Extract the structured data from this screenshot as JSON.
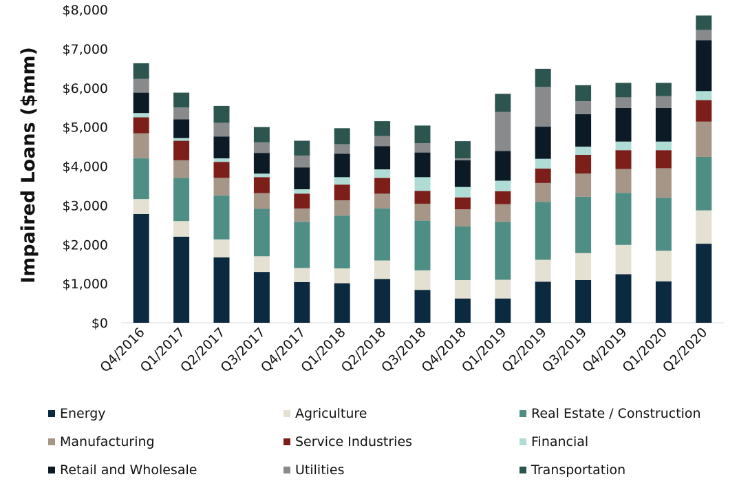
{
  "chart_data": {
    "type": "bar",
    "stacked": true,
    "ylabel": "Impaired Loans ($mm)",
    "xlabel": "",
    "ylim": [
      0,
      8000
    ],
    "yticks": [
      "$0",
      "$1,000",
      "$2,000",
      "$3,000",
      "$4,000",
      "$5,000",
      "$6,000",
      "$7,000",
      "$8,000"
    ],
    "ytick_values": [
      0,
      1000,
      2000,
      3000,
      4000,
      5000,
      6000,
      7000,
      8000
    ],
    "grid": false,
    "legend_position": "bottom",
    "categories": [
      "Q4/2016",
      "Q1/2017",
      "Q2/2017",
      "Q3/2017",
      "Q4/2017",
      "Q1/2018",
      "Q2/2018",
      "Q3/2018",
      "Q4/2018",
      "Q1/2019",
      "Q2/2019",
      "Q3/2019",
      "Q4/2019",
      "Q1/2020",
      "Q2/2020"
    ],
    "series": [
      {
        "name": "Energy",
        "color": "#0c2a3f",
        "values": [
          2780,
          2200,
          1670,
          1300,
          1040,
          1010,
          1120,
          840,
          620,
          620,
          1050,
          1090,
          1240,
          1060,
          2020
        ]
      },
      {
        "name": "Agriculture",
        "color": "#e4e1d3",
        "values": [
          380,
          400,
          460,
          400,
          360,
          380,
          470,
          500,
          470,
          480,
          560,
          690,
          750,
          780,
          850
        ]
      },
      {
        "name": "Real Estate / Construction",
        "color": "#4f8e85",
        "values": [
          1040,
          1100,
          1120,
          1210,
          1180,
          1350,
          1330,
          1270,
          1370,
          1480,
          1480,
          1440,
          1330,
          1350,
          1370
        ]
      },
      {
        "name": "Manufacturing",
        "color": "#a69688",
        "values": [
          640,
          450,
          450,
          400,
          340,
          390,
          380,
          430,
          440,
          450,
          480,
          590,
          610,
          760,
          900
        ]
      },
      {
        "name": "Service Industries",
        "color": "#7c1f1a",
        "values": [
          410,
          500,
          410,
          410,
          380,
          400,
          400,
          330,
          300,
          330,
          370,
          480,
          480,
          460,
          550
        ]
      },
      {
        "name": "Financial",
        "color": "#afdcd4",
        "values": [
          110,
          70,
          90,
          90,
          110,
          190,
          220,
          350,
          270,
          270,
          250,
          210,
          220,
          220,
          230
        ]
      },
      {
        "name": "Retail and Wholesale",
        "color": "#0b1a25",
        "values": [
          520,
          480,
          560,
          530,
          560,
          600,
          590,
          630,
          680,
          760,
          820,
          830,
          860,
          860,
          1300
        ]
      },
      {
        "name": "Utilities",
        "color": "#888a8b",
        "values": [
          350,
          300,
          350,
          270,
          300,
          240,
          260,
          240,
          50,
          1000,
          1020,
          330,
          270,
          300,
          260
        ]
      },
      {
        "name": "Transportation",
        "color": "#2d5550",
        "values": [
          400,
          380,
          430,
          390,
          380,
          410,
          380,
          450,
          440,
          460,
          460,
          410,
          370,
          340,
          370
        ]
      }
    ]
  }
}
